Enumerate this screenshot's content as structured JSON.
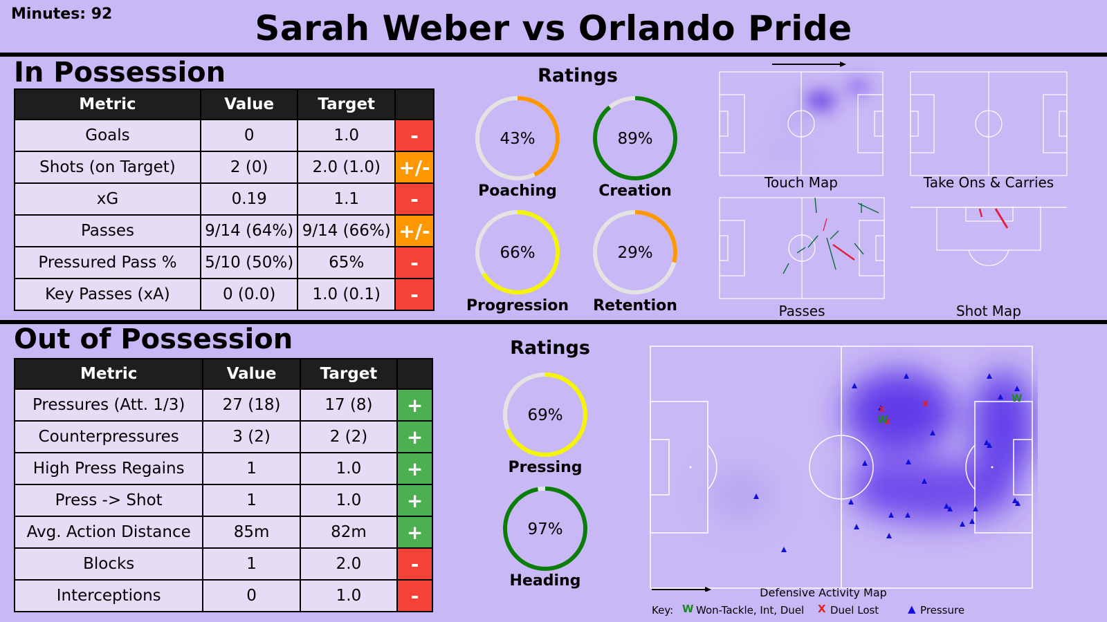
{
  "header": {
    "minutes": "Minutes: 92",
    "title": "Sarah Weber vs Orlando Pride"
  },
  "in_possession": {
    "title": "In Possession",
    "columns": [
      "Metric",
      "Value",
      "Target",
      ""
    ],
    "rows": [
      {
        "metric": "Goals",
        "value": "0",
        "target": "1.0",
        "flag": "-",
        "flag_color": "#f44336"
      },
      {
        "metric": "Shots (on Target)",
        "value": "2 (0)",
        "target": "2.0 (1.0)",
        "flag": "+/-",
        "flag_color": "#ff9800"
      },
      {
        "metric": "xG",
        "value": "0.19",
        "target": "1.1",
        "flag": "-",
        "flag_color": "#f44336"
      },
      {
        "metric": "Passes",
        "value": "9/14 (64%)",
        "target": "9/14 (66%)",
        "flag": "+/-",
        "flag_color": "#ff9800"
      },
      {
        "metric": "Pressured Pass %",
        "value": "5/10 (50%)",
        "target": "65%",
        "flag": "-",
        "flag_color": "#f44336"
      },
      {
        "metric": "Key Passes (xA)",
        "value": "0 (0.0)",
        "target": "1.0 (0.1)",
        "flag": "-",
        "flag_color": "#f44336"
      }
    ],
    "ratings_title": "Ratings",
    "ratings": [
      {
        "label": "Poaching",
        "text": "43%",
        "value": 43,
        "color": "#ff9800"
      },
      {
        "label": "Creation",
        "text": "89%",
        "value": 89,
        "color": "#0a7d0a"
      },
      {
        "label": "Progression",
        "text": "66%",
        "value": 66,
        "color": "#f5f500"
      },
      {
        "label": "Retention",
        "text": "29%",
        "value": 29,
        "color": "#ff9800"
      }
    ],
    "maps": {
      "touch": "Touch Map",
      "take_ons": "Take Ons & Carries",
      "passes": "Passes",
      "shots": "Shot Map"
    }
  },
  "out_of_possession": {
    "title": "Out of Possession",
    "columns": [
      "Metric",
      "Value",
      "Target",
      ""
    ],
    "rows": [
      {
        "metric": "Pressures (Att. 1/3)",
        "value": "27 (18)",
        "target": "17 (8)",
        "flag": "+",
        "flag_color": "#4caf50"
      },
      {
        "metric": "Counterpressures",
        "value": "3 (2)",
        "target": "2 (2)",
        "flag": "+",
        "flag_color": "#4caf50"
      },
      {
        "metric": "High Press Regains",
        "value": "1",
        "target": "1.0",
        "flag": "+",
        "flag_color": "#4caf50"
      },
      {
        "metric": "Press -> Shot",
        "value": "1",
        "target": "1.0",
        "flag": "+",
        "flag_color": "#4caf50"
      },
      {
        "metric": "Avg. Action Distance",
        "value": "85m",
        "target": "82m",
        "flag": "+",
        "flag_color": "#4caf50"
      },
      {
        "metric": "Blocks",
        "value": "1",
        "target": "2.0",
        "flag": "-",
        "flag_color": "#f44336"
      },
      {
        "metric": "Interceptions",
        "value": "0",
        "target": "1.0",
        "flag": "-",
        "flag_color": "#f44336"
      }
    ],
    "ratings_title": "Ratings",
    "ratings": [
      {
        "label": "Pressing",
        "text": "69%",
        "value": 69,
        "color": "#f5f500"
      },
      {
        "label": "Heading",
        "text": "97%",
        "value": 97,
        "color": "#0a7d0a"
      }
    ],
    "map_title": "Defensive Activity Map",
    "key": {
      "prefix": "Key:",
      "won_symbol": "W",
      "won": "Won-Tackle, Int, Duel",
      "lost_symbol": "X",
      "lost": "Duel Lost",
      "pressure_symbol": "▲",
      "pressure": "Pressure"
    }
  }
}
